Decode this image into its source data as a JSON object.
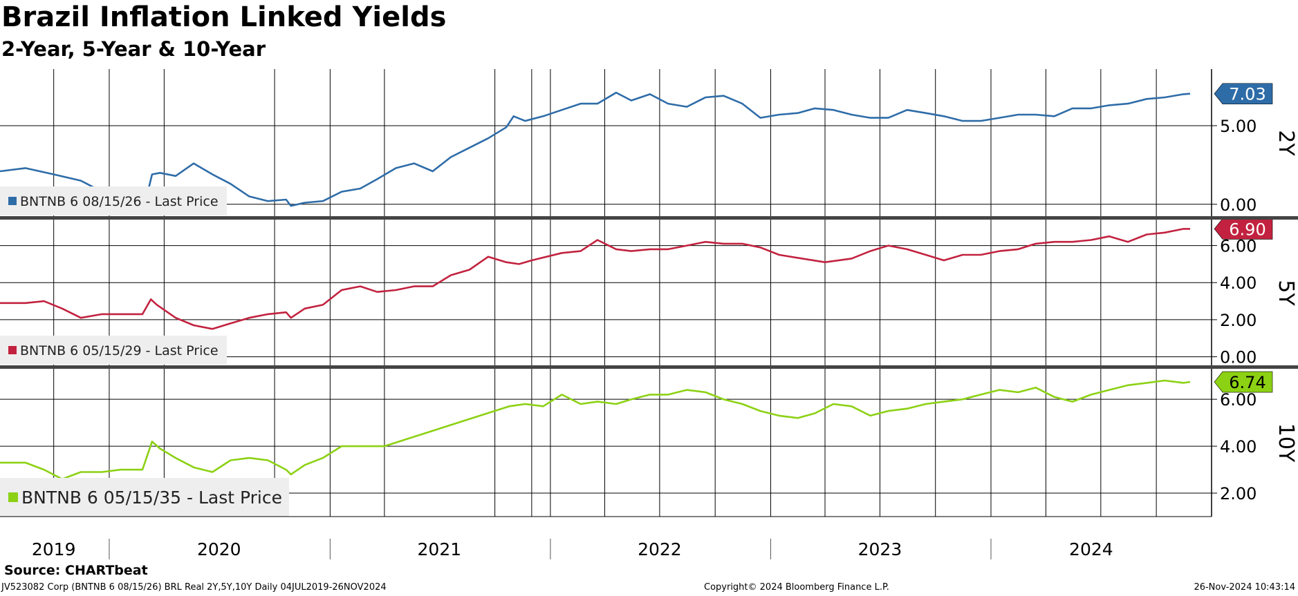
{
  "title": "Brazil Inflation Linked Yields",
  "subtitle": "2-Year, 5-Year & 10-Year",
  "source": "Source: CHARTbeat",
  "footer": {
    "left": "JV523082 Corp (BNTNB 6 08/15/26) BRL Real 2Y,5Y,10Y  Daily 04JUL2019-26NOV2024",
    "center": "Copyright© 2024 Bloomberg Finance L.P.",
    "right": "26-Nov-2024 10:43:14"
  },
  "chart_data": [
    {
      "type": "line",
      "panel_label": "2Y",
      "x_range": [
        "2019-07-04",
        "2024-11-26"
      ],
      "ylim": [
        -0.8,
        8.6
      ],
      "yticks": [
        0.0,
        5.0
      ],
      "ytick_labels": [
        "0.00",
        "5.00"
      ],
      "grid": true,
      "legend_position": "bottom-left",
      "series": [
        {
          "name": "BNTNB 6 08/15/26 - Last Price",
          "color": "#2E6CA8",
          "last_value": 7.03,
          "last_label": "7.03",
          "x": [
            "2019-07-04",
            "2019-08-15",
            "2019-10-01",
            "2019-11-15",
            "2019-12-20",
            "2020-01-20",
            "2020-02-25",
            "2020-03-05",
            "2020-03-12",
            "2020-03-25",
            "2020-04-20",
            "2020-05-20",
            "2020-06-20",
            "2020-07-20",
            "2020-08-20",
            "2020-09-20",
            "2020-10-20",
            "2020-10-28",
            "2020-11-20",
            "2020-12-20",
            "2021-01-20",
            "2021-02-20",
            "2021-03-20",
            "2021-04-20",
            "2021-05-20",
            "2021-06-20",
            "2021-07-20",
            "2021-08-20",
            "2021-09-20",
            "2021-10-20",
            "2021-11-01",
            "2021-11-20",
            "2021-12-20",
            "2022-01-20",
            "2022-02-20",
            "2022-03-20",
            "2022-04-20",
            "2022-05-15",
            "2022-06-15",
            "2022-07-15",
            "2022-08-15",
            "2022-09-15",
            "2022-10-15",
            "2022-11-15",
            "2022-12-15",
            "2023-01-15",
            "2023-02-15",
            "2023-03-15",
            "2023-04-15",
            "2023-05-15",
            "2023-06-15",
            "2023-07-15",
            "2023-08-15",
            "2023-09-15",
            "2023-10-15",
            "2023-11-15",
            "2023-12-15",
            "2024-01-15",
            "2024-02-15",
            "2024-03-15",
            "2024-04-15",
            "2024-05-15",
            "2024-06-15",
            "2024-07-15",
            "2024-08-15",
            "2024-09-15",
            "2024-10-15",
            "2024-11-15",
            "2024-11-26"
          ],
          "values": [
            2.1,
            2.3,
            1.9,
            1.5,
            0.8,
            0.7,
            0.7,
            0.8,
            1.9,
            2.0,
            1.8,
            2.6,
            1.9,
            1.3,
            0.5,
            0.2,
            0.3,
            -0.1,
            0.1,
            0.2,
            0.8,
            1.0,
            1.6,
            2.3,
            2.6,
            2.1,
            3.0,
            3.6,
            4.2,
            4.9,
            5.6,
            5.3,
            5.6,
            6.0,
            6.4,
            6.4,
            7.1,
            6.6,
            7.0,
            6.4,
            6.2,
            6.8,
            6.9,
            6.4,
            5.5,
            5.7,
            5.8,
            6.1,
            6.0,
            5.7,
            5.5,
            5.5,
            6.0,
            5.8,
            5.6,
            5.3,
            5.3,
            5.5,
            5.7,
            5.7,
            5.6,
            6.1,
            6.1,
            6.3,
            6.4,
            6.7,
            6.8,
            7.0,
            7.03
          ]
        }
      ]
    },
    {
      "type": "line",
      "panel_label": "5Y",
      "x_range": [
        "2019-07-04",
        "2024-11-26"
      ],
      "ylim": [
        -0.5,
        7.4
      ],
      "yticks": [
        0.0,
        2.0,
        4.0,
        6.0
      ],
      "ytick_labels": [
        "0.00",
        "2.00",
        "4.00",
        "6.00"
      ],
      "grid": true,
      "legend_position": "bottom-left",
      "series": [
        {
          "name": "BNTNB 6 05/15/29 - Last Price",
          "color": "#C2223F",
          "last_value": 6.9,
          "last_label": "6.90",
          "x": [
            "2019-07-04",
            "2019-08-15",
            "2019-09-15",
            "2019-10-15",
            "2019-11-15",
            "2019-12-20",
            "2020-02-25",
            "2020-03-10",
            "2020-03-20",
            "2020-04-20",
            "2020-05-20",
            "2020-06-20",
            "2020-07-20",
            "2020-08-20",
            "2020-09-20",
            "2020-10-20",
            "2020-10-28",
            "2020-11-20",
            "2020-12-20",
            "2021-01-20",
            "2021-02-20",
            "2021-03-20",
            "2021-04-20",
            "2021-05-20",
            "2021-06-20",
            "2021-07-20",
            "2021-08-20",
            "2021-09-20",
            "2021-10-20",
            "2021-11-10",
            "2021-12-01",
            "2022-01-20",
            "2022-02-20",
            "2022-03-20",
            "2022-04-20",
            "2022-05-15",
            "2022-06-15",
            "2022-07-15",
            "2022-08-15",
            "2022-09-15",
            "2022-10-15",
            "2022-11-15",
            "2022-12-15",
            "2023-01-15",
            "2023-04-01",
            "2023-05-15",
            "2023-06-15",
            "2023-07-15",
            "2023-08-15",
            "2023-09-15",
            "2023-10-15",
            "2023-11-15",
            "2023-12-15",
            "2024-01-15",
            "2024-02-15",
            "2024-03-15",
            "2024-04-15",
            "2024-05-15",
            "2024-06-15",
            "2024-07-15",
            "2024-08-15",
            "2024-09-15",
            "2024-10-15",
            "2024-11-15",
            "2024-11-26"
          ],
          "values": [
            2.9,
            2.9,
            3.0,
            2.6,
            2.1,
            2.3,
            2.3,
            3.1,
            2.8,
            2.1,
            1.7,
            1.5,
            1.8,
            2.1,
            2.3,
            2.4,
            2.1,
            2.6,
            2.8,
            3.6,
            3.8,
            3.5,
            3.6,
            3.8,
            3.8,
            4.4,
            4.7,
            5.4,
            5.1,
            5.0,
            5.2,
            5.6,
            5.7,
            6.3,
            5.8,
            5.7,
            5.8,
            5.8,
            6.0,
            6.2,
            6.1,
            6.1,
            5.9,
            5.5,
            5.1,
            5.3,
            5.7,
            6.0,
            5.8,
            5.5,
            5.2,
            5.5,
            5.5,
            5.7,
            5.8,
            6.1,
            6.2,
            6.2,
            6.3,
            6.5,
            6.2,
            6.6,
            6.7,
            6.9,
            6.9
          ]
        }
      ]
    },
    {
      "type": "line",
      "panel_label": "10Y",
      "x_range": [
        "2019-07-04",
        "2024-11-26"
      ],
      "ylim": [
        1.0,
        7.3
      ],
      "yticks": [
        2.0,
        4.0,
        6.0
      ],
      "ytick_labels": [
        "2.00",
        "4.00",
        "6.00"
      ],
      "grid": true,
      "legend_position": "bottom-left",
      "series": [
        {
          "name": "BNTNB 6 05/15/35 - Last Price",
          "color": "#8CD113",
          "last_value": 6.74,
          "last_label": "6.74",
          "x": [
            "2019-07-04",
            "2019-08-15",
            "2019-09-15",
            "2019-10-15",
            "2019-11-15",
            "2019-12-20",
            "2020-01-20",
            "2020-02-25",
            "2020-03-12",
            "2020-03-25",
            "2020-04-20",
            "2020-05-20",
            "2020-06-20",
            "2020-07-20",
            "2020-08-20",
            "2020-09-20",
            "2020-10-20",
            "2020-10-28",
            "2020-11-20",
            "2020-12-20",
            "2021-01-20",
            "2021-02-20",
            "2021-03-10",
            "2021-04-01",
            "2021-10-25",
            "2021-11-20",
            "2021-12-20",
            "2022-01-20",
            "2022-02-20",
            "2022-03-20",
            "2022-04-20",
            "2022-05-15",
            "2022-06-15",
            "2022-07-15",
            "2022-08-15",
            "2022-09-15",
            "2022-10-15",
            "2022-11-15",
            "2022-12-15",
            "2023-01-15",
            "2023-02-15",
            "2023-03-15",
            "2023-04-15",
            "2023-05-15",
            "2023-06-15",
            "2023-07-15",
            "2023-08-15",
            "2023-09-15",
            "2023-10-15",
            "2023-11-15",
            "2023-12-15",
            "2024-01-15",
            "2024-02-15",
            "2024-03-15",
            "2024-04-15",
            "2024-05-15",
            "2024-06-15",
            "2024-07-15",
            "2024-08-15",
            "2024-09-15",
            "2024-10-15",
            "2024-11-15",
            "2024-11-26"
          ],
          "values": [
            3.3,
            3.3,
            3.0,
            2.6,
            2.9,
            2.9,
            3.0,
            3.0,
            4.2,
            3.9,
            3.5,
            3.1,
            2.9,
            3.4,
            3.5,
            3.4,
            3.0,
            2.8,
            3.2,
            3.5,
            4.0,
            4.0,
            4.0,
            4.0,
            5.7,
            5.8,
            5.7,
            6.2,
            5.8,
            5.9,
            5.8,
            6.0,
            6.2,
            6.2,
            6.4,
            6.3,
            6.0,
            5.8,
            5.5,
            5.3,
            5.2,
            5.4,
            5.8,
            5.7,
            5.3,
            5.5,
            5.6,
            5.8,
            5.9,
            6.0,
            6.2,
            6.4,
            6.3,
            6.5,
            6.1,
            5.9,
            6.2,
            6.4,
            6.6,
            6.7,
            6.8,
            6.7,
            6.74
          ]
        }
      ]
    }
  ],
  "x_axis": {
    "year_labels": [
      "2019",
      "2020",
      "2021",
      "2022",
      "2023",
      "2024"
    ]
  },
  "colors": {
    "grid": "#000000",
    "separator": "#444444",
    "legend_bg": "#eeeeee"
  }
}
